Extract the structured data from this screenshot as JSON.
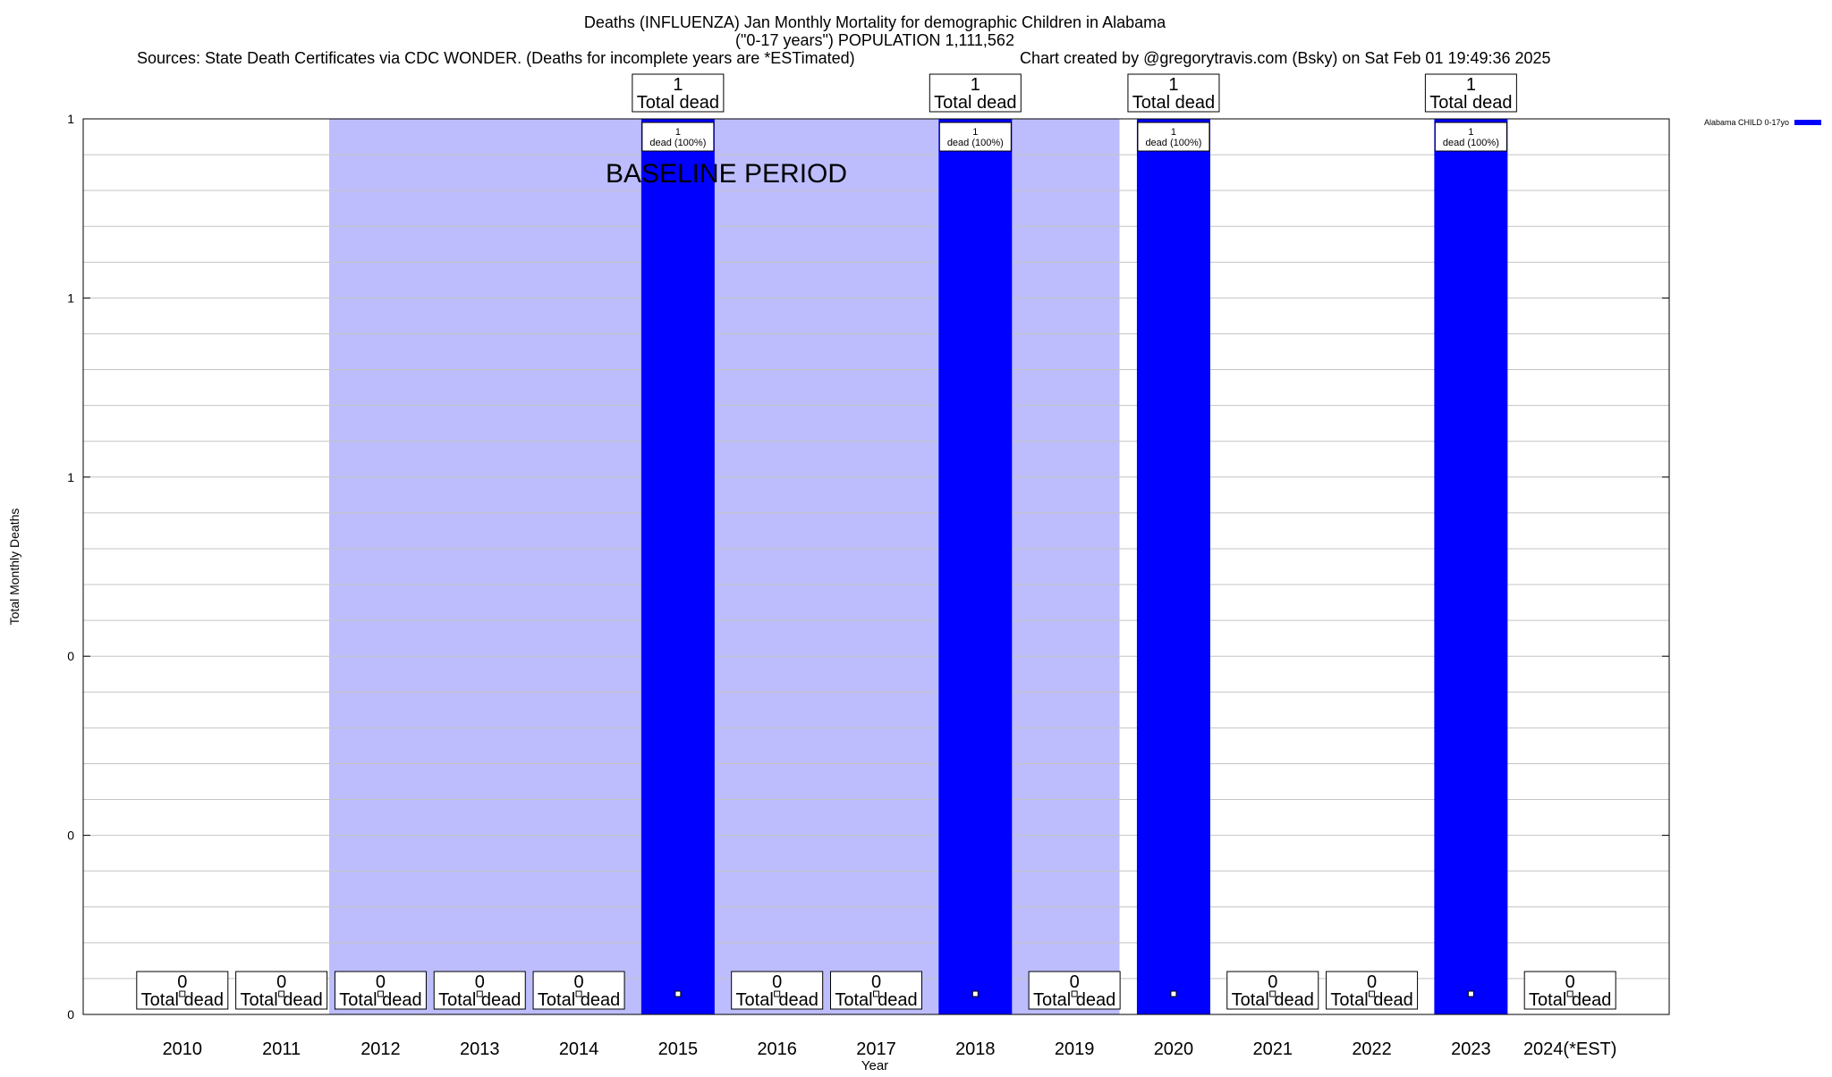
{
  "chart_data": {
    "type": "bar",
    "title_lines": [
      "Deaths (INFLUENZA) Jan Monthly Mortality for demographic Children in Alabama",
      "(\"0-17 years\") POPULATION 1,111,562"
    ],
    "sources_text": "Sources: State Death Certificates via CDC WONDER. (Deaths for incomplete years are *ESTimated)",
    "credit_text": "Chart created by @gregorytravis.com (Bsky) on Sat Feb 01 19:49:36 2025",
    "xlabel": "Year",
    "ylabel": "Total Monthly Deaths",
    "ylim": [
      0,
      1
    ],
    "ytick_values": [
      0,
      0.2,
      0.4,
      0.6,
      0.8,
      1.0
    ],
    "ytick_labels": [
      "0",
      "0",
      "0",
      "1",
      "1",
      "1"
    ],
    "grid": true,
    "legend_position": "top-right",
    "categories": [
      "2010",
      "2011",
      "2012",
      "2013",
      "2014",
      "2015",
      "2016",
      "2017",
      "2018",
      "2019",
      "2020",
      "2021",
      "2022",
      "2023",
      "2024(*EST)"
    ],
    "series": [
      {
        "name": "Alabama CHILD 0-17yo",
        "color": "#0000ff",
        "values": [
          0,
          0,
          0,
          0,
          0,
          1,
          0,
          0,
          1,
          0,
          1,
          0,
          0,
          1,
          0
        ]
      }
    ],
    "total_labels": [
      "0",
      "0",
      "0",
      "0",
      "0",
      "1",
      "0",
      "0",
      "1",
      "0",
      "1",
      "0",
      "0",
      "1",
      "0"
    ],
    "total_suffix": "Total dead",
    "bar_inner_labels": [
      {
        "category": "2015",
        "line1": "1",
        "line2": "dead (100%)"
      },
      {
        "category": "2018",
        "line1": "1",
        "line2": "dead (100%)"
      },
      {
        "category": "2020",
        "line1": "1",
        "line2": "dead (100%)"
      },
      {
        "category": "2023",
        "line1": "1",
        "line2": "dead (100%)"
      }
    ],
    "baseline_period": {
      "label": "BASELINE PERIOD",
      "from_category": "2012",
      "to_category": "2019",
      "color": "#bdbdfd"
    }
  }
}
